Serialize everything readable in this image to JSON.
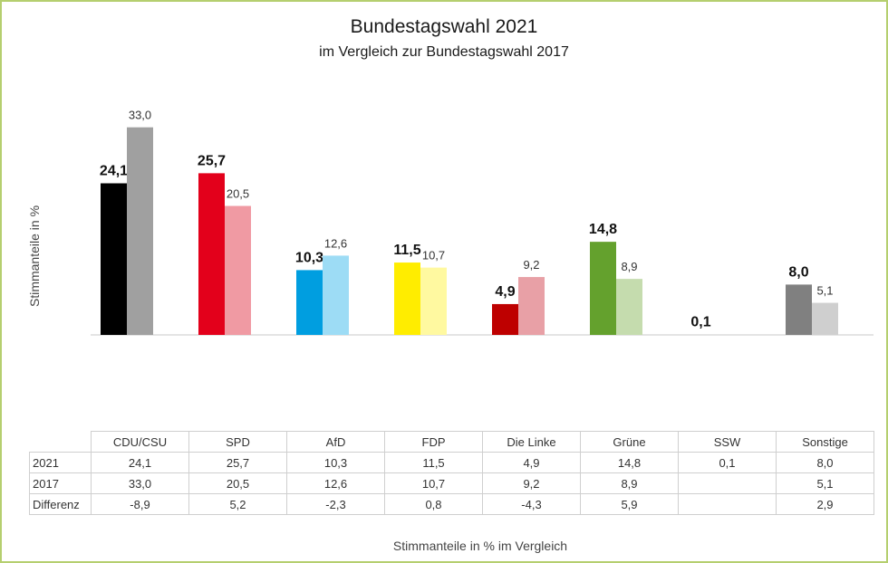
{
  "title": "Bundestagswahl 2021",
  "subtitle": "im Vergleich zur Bundestagswahl 2017",
  "chart_data": {
    "type": "bar",
    "categories": [
      "CDU/CSU",
      "SPD",
      "AfD",
      "FDP",
      "Die Linke",
      "Grüne",
      "SSW",
      "Sonstige"
    ],
    "series": [
      {
        "name": "2021",
        "values": [
          24.1,
          25.7,
          10.3,
          11.5,
          4.9,
          14.8,
          0.1,
          8.0
        ],
        "labels": [
          "24,1",
          "25,7",
          "10,3",
          "11,5",
          "4,9",
          "14,8",
          "0,1",
          "8,0"
        ]
      },
      {
        "name": "2017",
        "values": [
          33.0,
          20.5,
          12.6,
          10.7,
          9.2,
          8.9,
          null,
          5.1
        ],
        "labels": [
          "33,0",
          "20,5",
          "12,6",
          "10,7",
          "9,2",
          "8,9",
          "",
          "5,1"
        ]
      }
    ],
    "colors": {
      "2021": [
        "#000000",
        "#e3001b",
        "#009ee0",
        "#ffed00",
        "#be0000",
        "#64a12d",
        "#1e4cb0",
        "#808080"
      ],
      "2017": [
        "#a0a0a0",
        "#f09aa3",
        "#9ddcf5",
        "#fff9a0",
        "#e8a0a6",
        "#c5dcae",
        "#b4c4e8",
        "#cfcfcf"
      ]
    },
    "ylabel": "Stimmanteile in %",
    "xlabel": "Stimmanteile in % im Vergleich",
    "ylim": [
      0,
      35
    ],
    "grid": false,
    "table": {
      "header": [
        "CDU/CSU",
        "SPD",
        "AfD",
        "FDP",
        "Die Linke",
        "Grüne",
        "SSW",
        "Sonstige"
      ],
      "rows": [
        {
          "label": "2021",
          "cells": [
            "24,1",
            "25,7",
            "10,3",
            "11,5",
            "4,9",
            "14,8",
            "0,1",
            "8,0"
          ]
        },
        {
          "label": "2017",
          "cells": [
            "33,0",
            "20,5",
            "12,6",
            "10,7",
            "9,2",
            "8,9",
            "",
            "5,1"
          ]
        },
        {
          "label": "Differenz",
          "cells": [
            "-8,9",
            "5,2",
            "-2,3",
            "0,8",
            "-4,3",
            "5,9",
            "",
            "2,9"
          ]
        }
      ]
    }
  }
}
